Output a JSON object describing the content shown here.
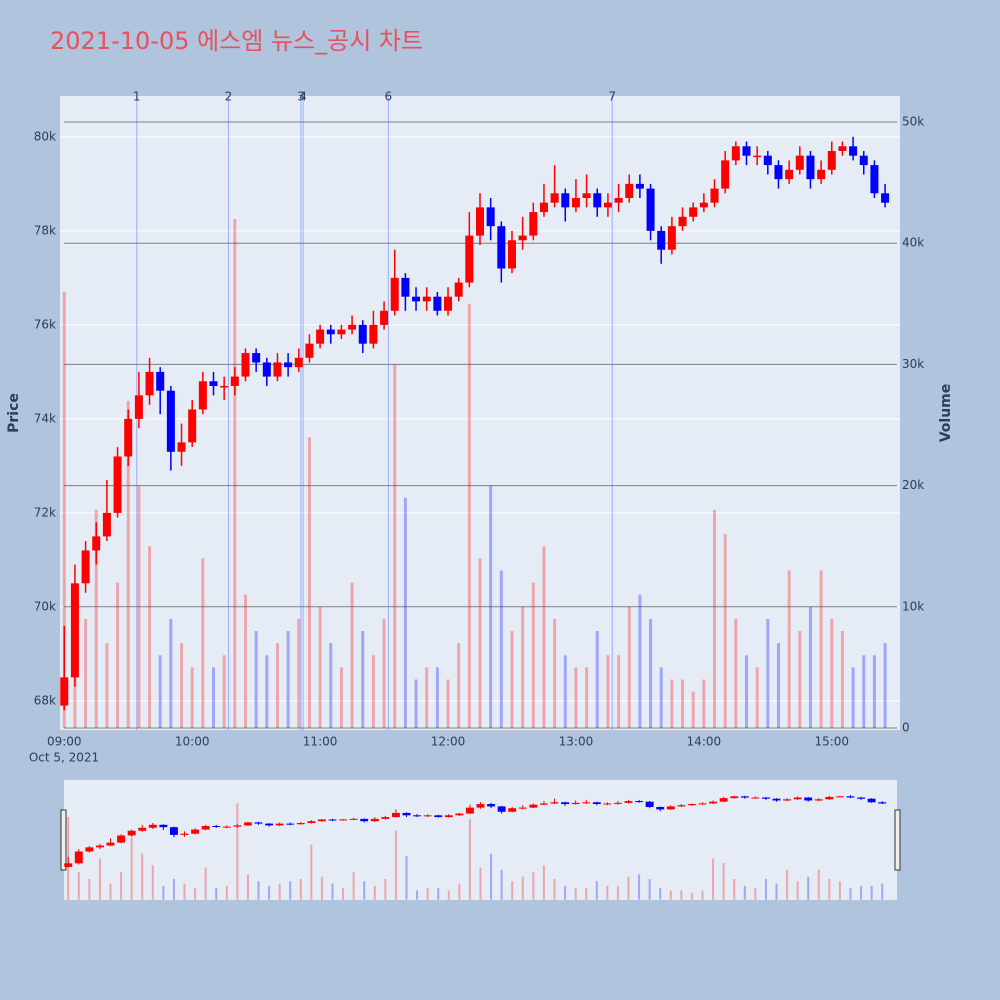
{
  "chart_data": {
    "type": "candlestick",
    "title": "2021-10-05 에스엠 뉴스_공시 차트",
    "y_label": "Price",
    "y2_label": "Volume",
    "x_date_label": "Oct 5, 2021",
    "up_color": "#ff0000",
    "down_color": "#0000ff",
    "x": [
      "09:00",
      "09:05",
      "09:10",
      "09:15",
      "09:20",
      "09:25",
      "09:30",
      "09:35",
      "09:40",
      "09:45",
      "09:50",
      "09:55",
      "10:00",
      "10:05",
      "10:10",
      "10:15",
      "10:20",
      "10:25",
      "10:30",
      "10:35",
      "10:40",
      "10:45",
      "10:50",
      "10:55",
      "11:00",
      "11:05",
      "11:10",
      "11:15",
      "11:20",
      "11:25",
      "11:30",
      "11:35",
      "11:40",
      "11:45",
      "11:50",
      "11:55",
      "12:00",
      "12:05",
      "12:10",
      "12:15",
      "12:20",
      "12:25",
      "12:30",
      "12:35",
      "12:40",
      "12:45",
      "12:50",
      "12:55",
      "13:00",
      "13:05",
      "13:10",
      "13:15",
      "13:20",
      "13:25",
      "13:30",
      "13:35",
      "13:40",
      "13:45",
      "13:50",
      "13:55",
      "14:00",
      "14:05",
      "14:10",
      "14:15",
      "14:20",
      "14:25",
      "14:30",
      "14:35",
      "14:40",
      "14:45",
      "14:50",
      "14:55",
      "15:00",
      "15:05",
      "15:10",
      "15:15",
      "15:20",
      "15:25"
    ],
    "open": [
      67900,
      68500,
      70500,
      71200,
      71500,
      72000,
      73200,
      74000,
      74500,
      75000,
      74600,
      73300,
      73500,
      74200,
      74800,
      74700,
      74700,
      74900,
      75400,
      75200,
      74900,
      75200,
      75100,
      75300,
      75600,
      75900,
      75800,
      75900,
      76000,
      75600,
      76000,
      76300,
      77000,
      76600,
      76500,
      76600,
      76300,
      76600,
      76900,
      77900,
      78500,
      78100,
      77200,
      77800,
      77900,
      78400,
      78600,
      78800,
      78500,
      78700,
      78800,
      78500,
      78600,
      78700,
      79000,
      78900,
      78000,
      77600,
      78100,
      78300,
      78500,
      78600,
      78900,
      79500,
      79800,
      79600,
      79600,
      79400,
      79100,
      79300,
      79600,
      79100,
      79300,
      79700,
      79800,
      79600,
      79400,
      78800
    ],
    "high": [
      69600,
      70900,
      71400,
      71800,
      72700,
      73400,
      74200,
      75000,
      75300,
      75100,
      74700,
      73900,
      74400,
      75000,
      75000,
      74900,
      75100,
      75500,
      75500,
      75300,
      75400,
      75400,
      75500,
      75800,
      76000,
      76000,
      76000,
      76200,
      76100,
      76300,
      76500,
      77600,
      77100,
      76800,
      76800,
      76700,
      76800,
      77000,
      78400,
      78800,
      78700,
      78200,
      78000,
      78300,
      78600,
      79000,
      79400,
      78900,
      79100,
      79200,
      78900,
      78800,
      79000,
      79200,
      79200,
      79000,
      78100,
      78300,
      78500,
      78600,
      78800,
      79100,
      79700,
      79900,
      79900,
      79800,
      79700,
      79500,
      79500,
      79800,
      79700,
      79500,
      79900,
      79900,
      80000,
      79700,
      79500,
      79000
    ],
    "low": [
      67800,
      68300,
      70300,
      70900,
      71400,
      71900,
      73000,
      73800,
      74300,
      74100,
      72900,
      73000,
      73400,
      74100,
      74500,
      74400,
      74500,
      74800,
      75000,
      74700,
      74800,
      74900,
      75000,
      75200,
      75500,
      75600,
      75700,
      75800,
      75400,
      75500,
      75900,
      76200,
      76300,
      76300,
      76300,
      76200,
      76200,
      76500,
      76800,
      77700,
      77800,
      76900,
      77100,
      77600,
      77800,
      78300,
      78500,
      78200,
      78400,
      78500,
      78300,
      78300,
      78400,
      78600,
      78700,
      77800,
      77300,
      77500,
      78000,
      78200,
      78400,
      78500,
      78800,
      79400,
      79400,
      79400,
      79200,
      78900,
      79000,
      79200,
      78900,
      79000,
      79200,
      79600,
      79500,
      79200,
      78700,
      78500
    ],
    "close": [
      68500,
      70500,
      71200,
      71500,
      72000,
      73200,
      74000,
      74500,
      75000,
      74600,
      73300,
      73500,
      74200,
      74800,
      74700,
      74700,
      74900,
      75400,
      75200,
      74900,
      75200,
      75100,
      75300,
      75600,
      75900,
      75800,
      75900,
      76000,
      75600,
      76000,
      76300,
      77000,
      76600,
      76500,
      76600,
      76300,
      76600,
      76900,
      77900,
      78500,
      78100,
      77200,
      77800,
      77900,
      78400,
      78600,
      78800,
      78500,
      78700,
      78800,
      78500,
      78600,
      78700,
      79000,
      78900,
      78000,
      77600,
      78100,
      78300,
      78500,
      78600,
      78900,
      79500,
      79800,
      79600,
      79600,
      79400,
      79100,
      79300,
      79600,
      79100,
      79300,
      79700,
      79800,
      79600,
      79400,
      78800,
      78600
    ],
    "volume": [
      36000,
      12000,
      9000,
      18000,
      7000,
      12000,
      27000,
      20000,
      15000,
      6000,
      9000,
      7000,
      5000,
      14000,
      5000,
      6000,
      42000,
      11000,
      8000,
      6000,
      7000,
      8000,
      9000,
      24000,
      10000,
      7000,
      5000,
      12000,
      8000,
      6000,
      9000,
      30000,
      19000,
      4000,
      5000,
      5000,
      4000,
      7000,
      35000,
      14000,
      20000,
      13000,
      8000,
      10000,
      12000,
      15000,
      9000,
      6000,
      5000,
      5000,
      8000,
      6000,
      6000,
      10000,
      11000,
      9000,
      5000,
      4000,
      4000,
      3000,
      4000,
      18000,
      16000,
      9000,
      6000,
      5000,
      9000,
      7000,
      13000,
      8000,
      10000,
      13000,
      9000,
      8000,
      5000,
      6000,
      6000,
      7000
    ],
    "events": [
      {
        "label": "1",
        "x": "09:34"
      },
      {
        "label": "2",
        "x": "10:17"
      },
      {
        "label": "3",
        "x": "10:51"
      },
      {
        "label": "4",
        "x": "10:52"
      },
      {
        "label": "6",
        "x": "11:32"
      },
      {
        "label": "7",
        "x": "13:17"
      }
    ],
    "xlim": [
      "08:58",
      "15:32"
    ],
    "xticks": [
      "09:00",
      "10:00",
      "11:00",
      "12:00",
      "13:00",
      "14:00",
      "15:00"
    ],
    "ylim": [
      67380,
      80870
    ],
    "yticks": [
      {
        "value": 68000,
        "label": "68k"
      },
      {
        "value": 70000,
        "label": "70k"
      },
      {
        "value": 72000,
        "label": "72k"
      },
      {
        "value": 74000,
        "label": "74k"
      },
      {
        "value": 76000,
        "label": "76k"
      },
      {
        "value": 78000,
        "label": "78k"
      },
      {
        "value": 80000,
        "label": "80k"
      }
    ],
    "y2lim": [
      -165,
      52150
    ],
    "y2ticks": [
      0,
      {
        "value": 10000,
        "label": "10k"
      },
      {
        "value": 20000,
        "label": "20k"
      },
      {
        "value": 30000,
        "label": "30k"
      },
      {
        "value": 40000,
        "label": "40k"
      },
      {
        "value": 50000,
        "label": "50k"
      }
    ],
    "grid": true
  }
}
